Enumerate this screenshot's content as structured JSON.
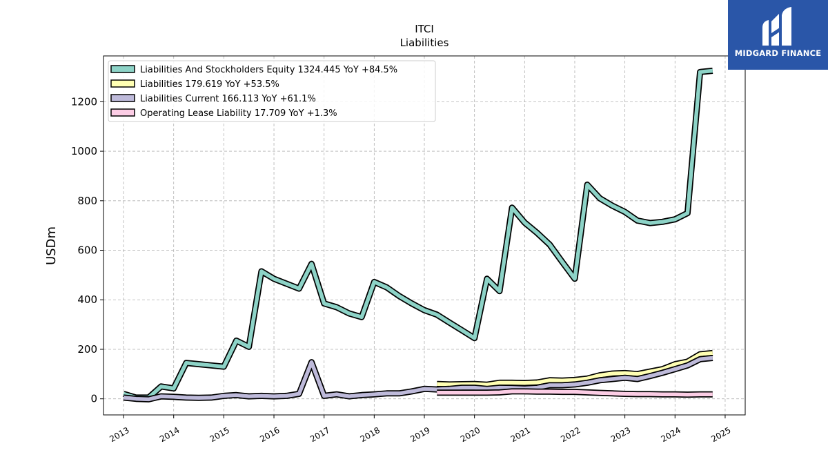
{
  "chart_data": {
    "type": "line",
    "title": "ITCI",
    "subtitle": "Liabilities",
    "xlabel": "",
    "ylabel": "USDm",
    "ylim": [
      -65,
      1385
    ],
    "xlim": [
      2012.6,
      2025.4
    ],
    "yticks": [
      0,
      200,
      400,
      600,
      800,
      1000,
      1200
    ],
    "xticks": [
      "2013",
      "2014",
      "2015",
      "2016",
      "2017",
      "2018",
      "2019",
      "2020",
      "2021",
      "2022",
      "2023",
      "2024",
      "2025"
    ],
    "grid": true,
    "legend_position": "top-left",
    "series": [
      {
        "name": "Liabilities And Stockholders Equity",
        "legend_label": "Liabilities And Stockholders Equity  1324.445 YoY +84.5%",
        "color": "#8dd3c7",
        "x": [
          "2013-01-01",
          "2013-04-01",
          "2013-07-01",
          "2013-10-01",
          "2014-01-01",
          "2014-04-01",
          "2014-07-01",
          "2014-10-01",
          "2015-01-01",
          "2015-04-01",
          "2015-07-01",
          "2015-10-01",
          "2016-01-01",
          "2016-04-01",
          "2016-07-01",
          "2016-10-01",
          "2017-01-01",
          "2017-04-01",
          "2017-07-01",
          "2017-10-01",
          "2018-01-01",
          "2018-04-01",
          "2018-07-01",
          "2018-10-01",
          "2019-01-01",
          "2019-04-01",
          "2019-07-01",
          "2019-10-01",
          "2020-01-01",
          "2020-04-01",
          "2020-07-01",
          "2020-10-01",
          "2021-01-01",
          "2021-04-01",
          "2021-07-01",
          "2021-10-01",
          "2022-01-01",
          "2022-04-01",
          "2022-07-01",
          "2022-10-01",
          "2023-01-01",
          "2023-04-01",
          "2023-07-01",
          "2023-10-01",
          "2024-01-01",
          "2024-04-01",
          "2024-07-01",
          "2024-10-01"
        ],
        "y": [
          20,
          5,
          5,
          50,
          42,
          145,
          140,
          135,
          130,
          235,
          210,
          515,
          485,
          465,
          445,
          545,
          385,
          370,
          345,
          330,
          472,
          450,
          415,
          385,
          358,
          340,
          308,
          277,
          245,
          485,
          435,
          772,
          712,
          670,
          623,
          553,
          485,
          865,
          810,
          780,
          755,
          720,
          710,
          715,
          725,
          750,
          1320,
          1325
        ]
      },
      {
        "name": "Liabilities",
        "legend_label": "Liabilities  179.619 YoY +53.5%",
        "color": "#ffffb3",
        "x": [
          "2019-04-01",
          "2019-07-01",
          "2019-10-01",
          "2020-01-01",
          "2020-04-01",
          "2020-07-01",
          "2020-10-01",
          "2021-01-01",
          "2021-04-01",
          "2021-07-01",
          "2021-10-01",
          "2022-01-01",
          "2022-04-01",
          "2022-07-01",
          "2022-10-01",
          "2023-01-01",
          "2023-04-01",
          "2023-07-01",
          "2023-10-01",
          "2024-01-01",
          "2024-04-01",
          "2024-07-01",
          "2024-10-01"
        ],
        "y": [
          60,
          58,
          59,
          60,
          57,
          65,
          65,
          64,
          66,
          75,
          74,
          76,
          82,
          95,
          102,
          104,
          100,
          110,
          120,
          140,
          150,
          180,
          185
        ]
      },
      {
        "name": "Liabilities Current",
        "legend_label": "Liabilities Current  166.113 YoY +61.1%",
        "color": "#bebada",
        "x": [
          "2013-01-01",
          "2013-04-01",
          "2013-07-01",
          "2013-10-01",
          "2014-01-01",
          "2014-04-01",
          "2014-07-01",
          "2014-10-01",
          "2015-01-01",
          "2015-04-01",
          "2015-07-01",
          "2015-10-01",
          "2016-01-01",
          "2016-04-01",
          "2016-07-01",
          "2016-10-01",
          "2017-01-01",
          "2017-04-01",
          "2017-07-01",
          "2017-10-01",
          "2018-01-01",
          "2018-04-01",
          "2018-07-01",
          "2018-10-01",
          "2019-01-01",
          "2019-04-01",
          "2019-07-01",
          "2019-10-01",
          "2020-01-01",
          "2020-04-01",
          "2020-07-01",
          "2020-10-01",
          "2021-01-01",
          "2021-04-01",
          "2021-07-01",
          "2021-10-01",
          "2022-01-01",
          "2022-04-01",
          "2022-07-01",
          "2022-10-01",
          "2023-01-01",
          "2023-04-01",
          "2023-07-01",
          "2023-10-01",
          "2024-01-01",
          "2024-04-01",
          "2024-07-01",
          "2024-10-01"
        ],
        "y": [
          5,
          0,
          -2,
          10,
          8,
          5,
          4,
          5,
          12,
          15,
          10,
          12,
          10,
          12,
          20,
          148,
          12,
          18,
          10,
          15,
          18,
          22,
          22,
          30,
          40,
          38,
          40,
          45,
          45,
          40,
          45,
          44,
          42,
          45,
          55,
          55,
          58,
          65,
          75,
          80,
          85,
          80,
          92,
          105,
          120,
          135,
          160,
          165
        ]
      },
      {
        "name": "Operating Lease Liability",
        "legend_label": "Operating Lease Liability  17.709 YoY +1.3%",
        "color": "#fccde5",
        "x": [
          "2019-04-01",
          "2019-07-01",
          "2019-10-01",
          "2020-01-01",
          "2020-04-01",
          "2020-07-01",
          "2020-10-01",
          "2021-01-01",
          "2021-04-01",
          "2021-07-01",
          "2021-10-01",
          "2022-01-01",
          "2022-04-01",
          "2022-07-01",
          "2022-10-01",
          "2023-01-01",
          "2023-04-01",
          "2023-07-01",
          "2023-10-01",
          "2024-01-01",
          "2024-04-01",
          "2024-07-01",
          "2024-10-01"
        ],
        "y": [
          25,
          25,
          25,
          25,
          25,
          26,
          30,
          30,
          29,
          29,
          28,
          28,
          26,
          24,
          22,
          20,
          19,
          19,
          18,
          18,
          17,
          18,
          18
        ]
      }
    ]
  },
  "logo": {
    "text": "MIDGARD FINANCE",
    "background": "#2a56a8"
  }
}
